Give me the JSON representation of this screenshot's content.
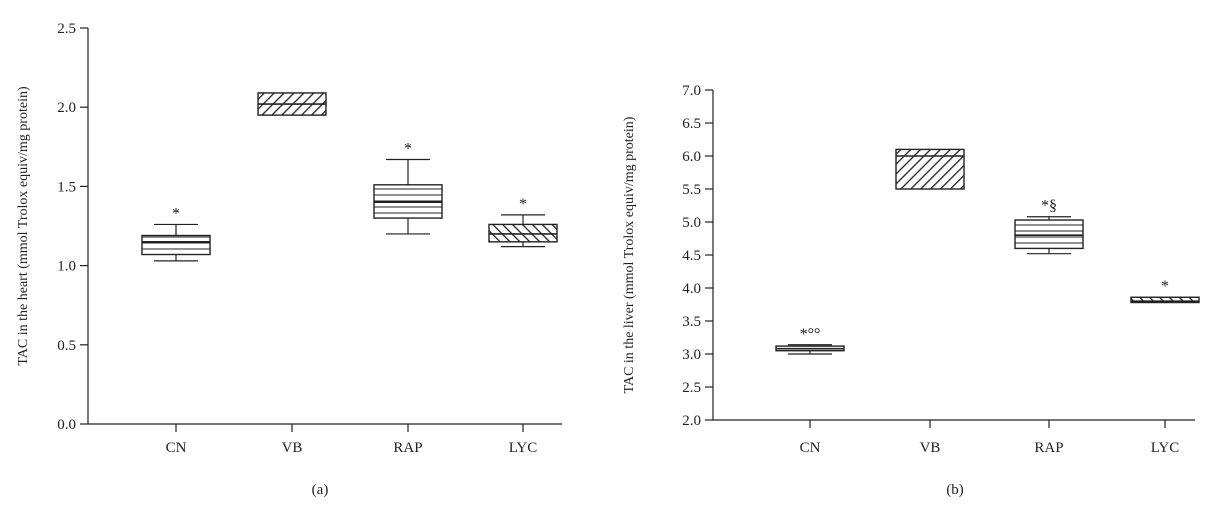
{
  "chart_data": [
    {
      "type": "box",
      "panel_label": "(a)",
      "ylabel": "TAC in the heart (mmol Trolox equiv/mg protein)",
      "ylim": [
        0,
        2.5
      ],
      "yticks": [
        "0.0",
        "0.5",
        "1.0",
        "1.5",
        "2.0",
        "2.5"
      ],
      "categories": [
        "CN",
        "VB",
        "RAP",
        "LYC"
      ],
      "boxes": [
        {
          "category": "CN",
          "min": 1.03,
          "q1": 1.07,
          "median": 1.15,
          "q3": 1.19,
          "max": 1.26,
          "annotation": "*",
          "pattern": "horizontal"
        },
        {
          "category": "VB",
          "min": 1.95,
          "q1": 1.95,
          "median": 2.02,
          "q3": 2.09,
          "max": 2.09,
          "annotation": "",
          "pattern": "diagonal-back"
        },
        {
          "category": "RAP",
          "min": 1.2,
          "q1": 1.3,
          "median": 1.4,
          "q3": 1.51,
          "max": 1.67,
          "annotation": "*",
          "pattern": "horizontal"
        },
        {
          "category": "LYC",
          "min": 1.12,
          "q1": 1.15,
          "median": 1.2,
          "q3": 1.26,
          "max": 1.32,
          "annotation": "*",
          "pattern": "diagonal-forward"
        }
      ]
    },
    {
      "type": "box",
      "panel_label": "(b)",
      "ylabel": "TAC in the liver (mmol Trolox equiv/mg protein)",
      "ylim": [
        2.0,
        7.0
      ],
      "yticks": [
        "2.0",
        "2.5",
        "3.0",
        "3.5",
        "4.0",
        "4.5",
        "5.0",
        "5.5",
        "6.0",
        "6.5",
        "7.0"
      ],
      "categories": [
        "CN",
        "VB",
        "RAP",
        "LYC"
      ],
      "boxes": [
        {
          "category": "CN",
          "min": 3.0,
          "q1": 3.05,
          "median": 3.08,
          "q3": 3.12,
          "max": 3.14,
          "annotation": "*°°",
          "pattern": "horizontal"
        },
        {
          "category": "VB",
          "min": 5.5,
          "q1": 5.5,
          "median": 6.0,
          "q3": 6.1,
          "max": 6.1,
          "annotation": "",
          "pattern": "diagonal-back"
        },
        {
          "category": "RAP",
          "min": 4.52,
          "q1": 4.6,
          "median": 4.8,
          "q3": 5.03,
          "max": 5.08,
          "annotation": "*§",
          "pattern": "horizontal"
        },
        {
          "category": "LYC",
          "min": 3.78,
          "q1": 3.78,
          "median": 3.8,
          "q3": 3.86,
          "max": 3.86,
          "annotation": "*",
          "pattern": "diagonal-forward"
        }
      ]
    }
  ]
}
